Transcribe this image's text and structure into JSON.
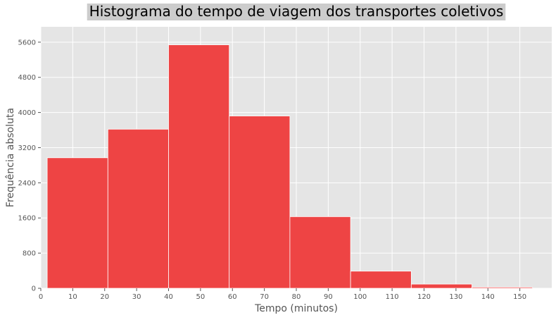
{
  "chart_data": {
    "type": "bar",
    "title": "Histograma do tempo de viagem dos transportes coletivos",
    "xlabel": "Tempo (minutos)",
    "ylabel": "Frequência absoluta",
    "xlim": [
      0,
      160
    ],
    "ylim": [
      0,
      5950
    ],
    "x_ticks": [
      0,
      10,
      20,
      30,
      40,
      50,
      60,
      70,
      80,
      90,
      100,
      110,
      120,
      130,
      140,
      150
    ],
    "y_ticks": [
      0,
      800,
      1600,
      2400,
      3200,
      4000,
      4800,
      5600
    ],
    "bins": [
      {
        "start": 2,
        "end": 21,
        "value": 2970
      },
      {
        "start": 21,
        "end": 40,
        "value": 3620
      },
      {
        "start": 40,
        "end": 59,
        "value": 5540
      },
      {
        "start": 59,
        "end": 78,
        "value": 3920
      },
      {
        "start": 78,
        "end": 97,
        "value": 1630
      },
      {
        "start": 97,
        "end": 116,
        "value": 390
      },
      {
        "start": 116,
        "end": 135,
        "value": 95
      },
      {
        "start": 135,
        "end": 154,
        "value": 25
      }
    ],
    "grid": true,
    "colors": {
      "bar": "#ee4444",
      "plot_background": "#e5e5e5",
      "grid": "#ffffff",
      "title_background": "#cccccc"
    }
  }
}
